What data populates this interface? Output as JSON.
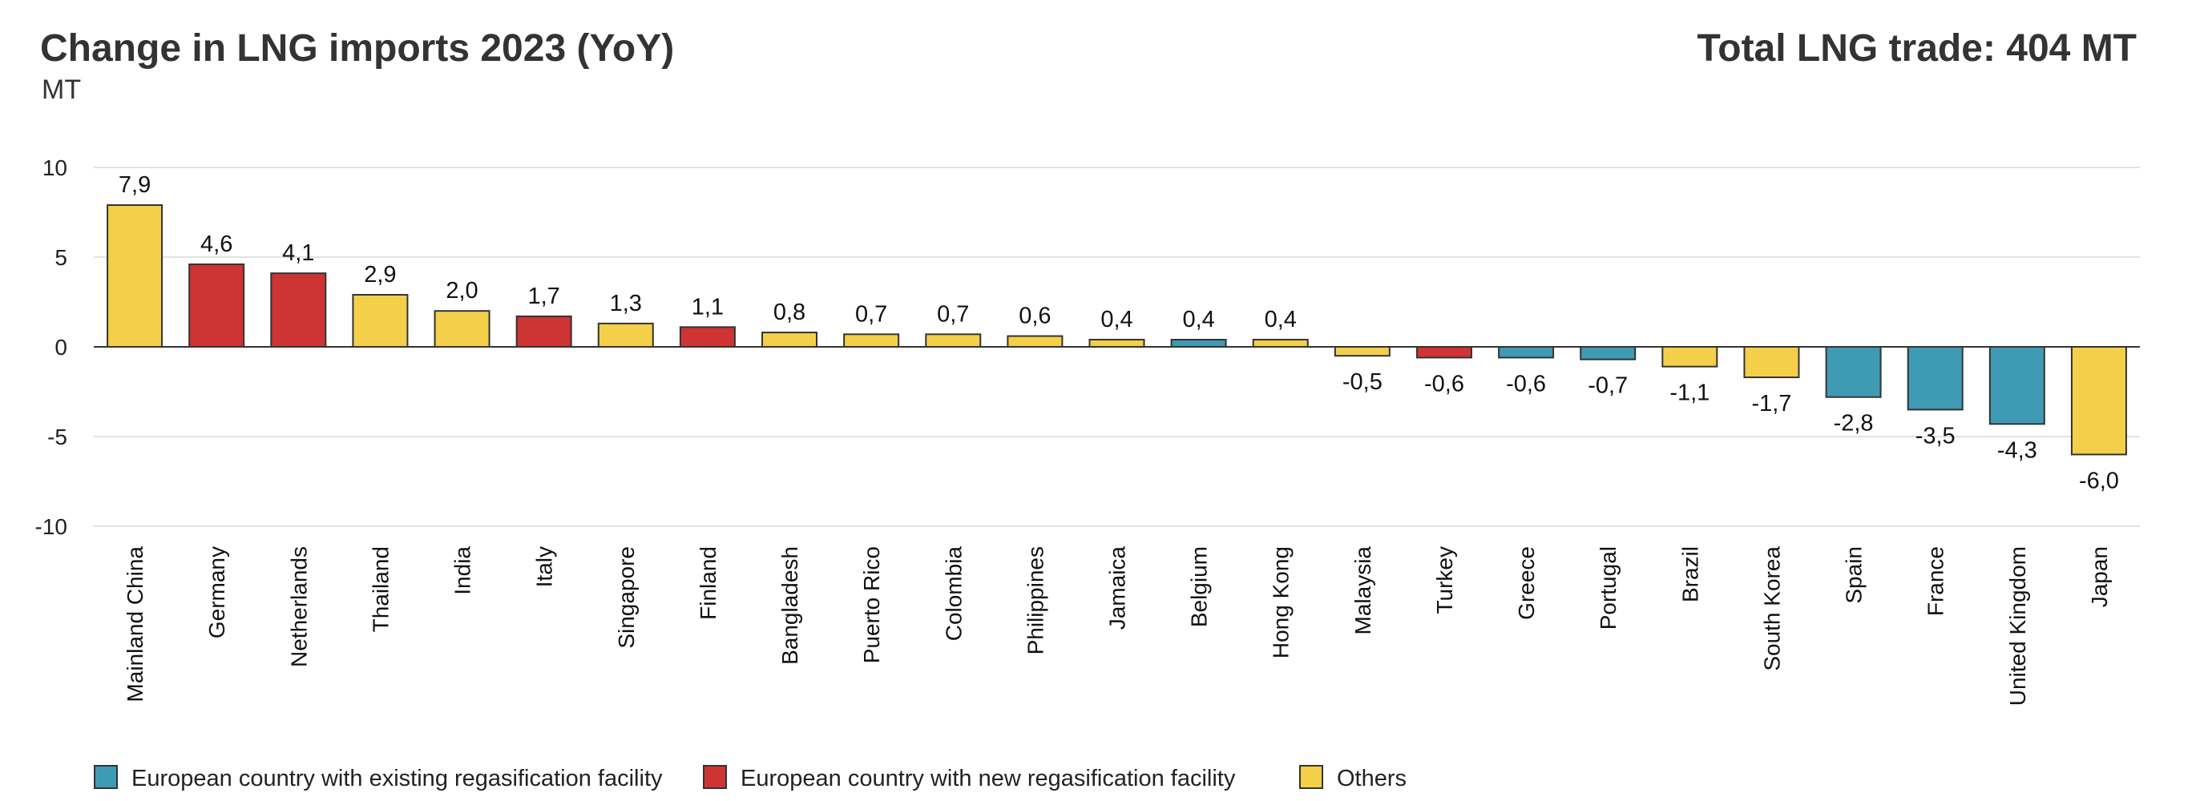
{
  "header": {
    "title": "Change in LNG imports 2023 (YoY)",
    "unit": "MT",
    "total": "Total LNG trade: 404 MT"
  },
  "colors": {
    "existing": "#3f9bb3",
    "new": "#cf3434",
    "other": "#f4d04a"
  },
  "legend": [
    {
      "key": "existing",
      "label": "European country with existing regasification facility"
    },
    {
      "key": "new",
      "label": "European country with new regasification facility"
    },
    {
      "key": "other",
      "label": "Others"
    }
  ],
  "chart_data": {
    "type": "bar",
    "title": "Change in LNG imports 2023 (YoY)",
    "ylabel": "MT",
    "ylim": [
      -10,
      10
    ],
    "yticks": [
      10,
      5,
      0,
      -5,
      -10
    ],
    "grid": true,
    "legend_position": "bottom-left",
    "categories": [
      "Mainland China",
      "Germany",
      "Netherlands",
      "Thailand",
      "India",
      "Italy",
      "Singapore",
      "Finland",
      "Bangladesh",
      "Puerto Rico",
      "Colombia",
      "Philippines",
      "Jamaica",
      "Belgium",
      "Hong Kong",
      "Malaysia",
      "Turkey",
      "Greece",
      "Portugal",
      "Brazil",
      "South Korea",
      "Spain",
      "France",
      "United Kingdom",
      "Japan"
    ],
    "values": [
      7.9,
      4.6,
      4.1,
      2.9,
      2.0,
      1.7,
      1.3,
      1.1,
      0.8,
      0.7,
      0.7,
      0.6,
      0.4,
      0.4,
      0.4,
      -0.5,
      -0.6,
      -0.6,
      -0.7,
      -1.1,
      -1.7,
      -2.8,
      -3.5,
      -4.3,
      -6.0
    ],
    "value_labels": [
      "7,9",
      "4,6",
      "4,1",
      "2,9",
      "2,0",
      "1,7",
      "1,3",
      "1,1",
      "0,8",
      "0,7",
      "0,7",
      "0,6",
      "0,4",
      "0,4",
      "0,4",
      "-0,5",
      "-0,6",
      "-0,6",
      "-0,7",
      "-1,1",
      "-1,7",
      "-2,8",
      "-3,5",
      "-4,3",
      "-6,0"
    ],
    "groups": [
      "other",
      "new",
      "new",
      "other",
      "other",
      "new",
      "other",
      "new",
      "other",
      "other",
      "other",
      "other",
      "other",
      "existing",
      "other",
      "other",
      "new",
      "existing",
      "existing",
      "other",
      "other",
      "existing",
      "existing",
      "existing",
      "other"
    ]
  }
}
